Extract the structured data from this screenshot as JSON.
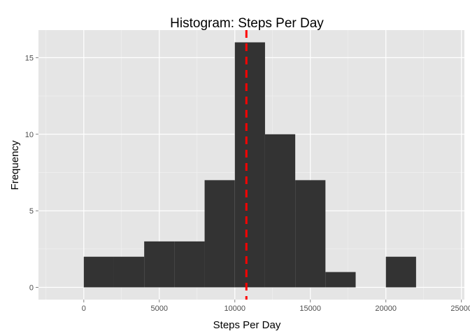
{
  "chart_data": {
    "type": "bar",
    "subtype": "histogram",
    "title": "Histogram: Steps Per Day",
    "xlabel": "Steps Per Day",
    "ylabel": "Frequency",
    "bin_width": 2000,
    "bins": [
      {
        "start": 0,
        "end": 2000,
        "count": 2
      },
      {
        "start": 2000,
        "end": 4000,
        "count": 2
      },
      {
        "start": 4000,
        "end": 6000,
        "count": 3
      },
      {
        "start": 6000,
        "end": 8000,
        "count": 3
      },
      {
        "start": 8000,
        "end": 10000,
        "count": 7
      },
      {
        "start": 10000,
        "end": 12000,
        "count": 16
      },
      {
        "start": 12000,
        "end": 14000,
        "count": 10
      },
      {
        "start": 14000,
        "end": 16000,
        "count": 7
      },
      {
        "start": 16000,
        "end": 18000,
        "count": 1
      },
      {
        "start": 18000,
        "end": 20000,
        "count": 0
      },
      {
        "start": 20000,
        "end": 22000,
        "count": 2
      }
    ],
    "xlim": [
      -3000,
      25200
    ],
    "ylim": [
      -0.8,
      16.8
    ],
    "x_ticks": [
      {
        "value": 0,
        "label": "0"
      },
      {
        "value": 5000,
        "label": "5000"
      },
      {
        "value": 10000,
        "label": "10000"
      },
      {
        "value": 15000,
        "label": "15000"
      },
      {
        "value": 20000,
        "label": "20000"
      },
      {
        "value": 25000,
        "label": "25000"
      }
    ],
    "y_ticks": [
      {
        "value": 0,
        "label": "0"
      },
      {
        "value": 5,
        "label": "5"
      },
      {
        "value": 10,
        "label": "10"
      },
      {
        "value": 15,
        "label": "15"
      }
    ],
    "reference_line": {
      "x": 10766,
      "style": "dashed",
      "color": "#ff0000"
    },
    "grid": true,
    "legend": "none",
    "colors": {
      "panel": "#e5e5e5",
      "grid_major": "#ffffff",
      "grid_minor": "#f2f2f2",
      "bar": "#333333",
      "tick": "#7f7f7f"
    }
  }
}
